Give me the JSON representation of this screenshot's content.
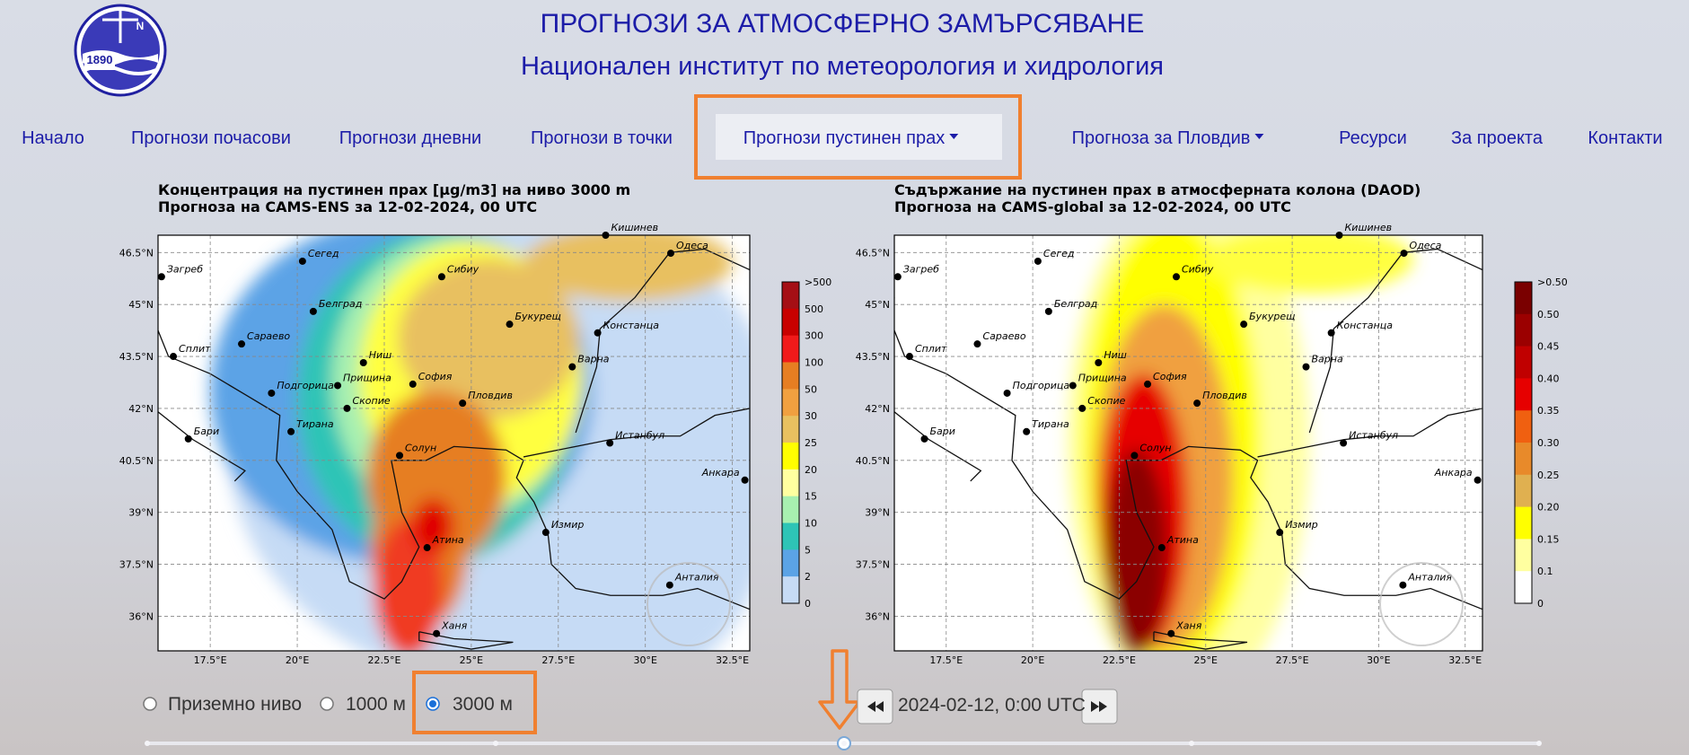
{
  "header": {
    "title": "ПРОГНОЗИ ЗА АТМОСФЕРНО ЗАМЪРСЯВАНЕ",
    "subtitle": "Национален институт по метеорология и хидрология",
    "logo_year": "1890",
    "logo_letter": "N"
  },
  "nav": [
    {
      "label": "Начало"
    },
    {
      "label": "Прогнози почасови"
    },
    {
      "label": "Прогнози дневни"
    },
    {
      "label": "Прогнози в точки"
    },
    {
      "label": "Прогнози пустинен прах",
      "dropdown": true,
      "active": true
    },
    {
      "label": "Прогноза за Пловдив",
      "dropdown": true
    },
    {
      "label": "Ресурси"
    },
    {
      "label": "За проекта"
    },
    {
      "label": "Контакти"
    }
  ],
  "map_axes": {
    "xlim": [
      16,
      33
    ],
    "ylim": [
      35,
      47
    ],
    "xticks": [
      {
        "value": 17.5,
        "label": "17.5°E"
      },
      {
        "value": 20,
        "label": "20°E"
      },
      {
        "value": 22.5,
        "label": "22.5°E"
      },
      {
        "value": 25,
        "label": "25°E"
      },
      {
        "value": 27.5,
        "label": "27.5°E"
      },
      {
        "value": 30,
        "label": "30°E"
      },
      {
        "value": 32.5,
        "label": "32.5°E"
      }
    ],
    "yticks": [
      {
        "value": 36,
        "label": "36°N"
      },
      {
        "value": 37.5,
        "label": "37.5°N"
      },
      {
        "value": 39,
        "label": "39°N"
      },
      {
        "value": 40.5,
        "label": "40.5°N"
      },
      {
        "value": 42,
        "label": "42°N"
      },
      {
        "value": 43.5,
        "label": "43.5°N"
      },
      {
        "value": 45,
        "label": "45°N"
      },
      {
        "value": 46.5,
        "label": "46.5°N"
      }
    ],
    "cities": [
      "Кишинев",
      "Одеса",
      "Загреб",
      "Сегед",
      "Сибиу",
      "Белград",
      "Букурещ",
      "Сараево",
      "Констанца",
      "Сплит",
      "Ниш",
      "Варна",
      "София",
      "Прищина",
      "Подгорица",
      "Пловдив",
      "Скопие",
      "Бари",
      "Тирана",
      "Истанбул",
      "Солун",
      "Анкара",
      "Измир",
      "Атина",
      "Анталия",
      "Ханя"
    ]
  },
  "maps": [
    {
      "title": [
        "Концентрация на пустинен прах [µg/m3] на ниво 3000 m",
        "Прогноза на CAMS-ENS за 12-02-2024, 00 UTC"
      ],
      "colorbar": {
        "labels": [
          ">500",
          "500",
          "300",
          "100",
          "50",
          "30",
          "25",
          "20",
          "15",
          "10",
          "5",
          "2",
          "0"
        ],
        "colors": [
          "#a50f15",
          "#c80000",
          "#f01a1a",
          "#e67e22",
          "#f0a040",
          "#e8c060",
          "#ffff00",
          "#ffffa0",
          "#a8f0b0",
          "#2ec4b6",
          "#5ba3e6",
          "#c6dbf5"
        ]
      }
    },
    {
      "title": [
        "Съдържание на пустинен прах в атмосферната колона (DAOD)",
        "Прогноза на CAMS-global за 12-02-2024, 00 UTC"
      ],
      "colorbar": {
        "labels": [
          ">0.50",
          "0.50",
          "0.45",
          "0.40",
          "0.35",
          "0.30",
          "0.25",
          "0.20",
          "0.15",
          "0.1",
          "0"
        ],
        "colors": [
          "#7a0000",
          "#9b0000",
          "#c00000",
          "#e60000",
          "#f06010",
          "#e88a2a",
          "#e0b050",
          "#ffff00",
          "#ffffa0",
          "#ffffff"
        ]
      }
    }
  ],
  "controls": {
    "levels": [
      {
        "label": "Приземно ниво"
      },
      {
        "label": "1000 м"
      },
      {
        "label": "3000 м",
        "selected": true
      }
    ],
    "date": "2024-02-12, 0:00 UTC"
  }
}
